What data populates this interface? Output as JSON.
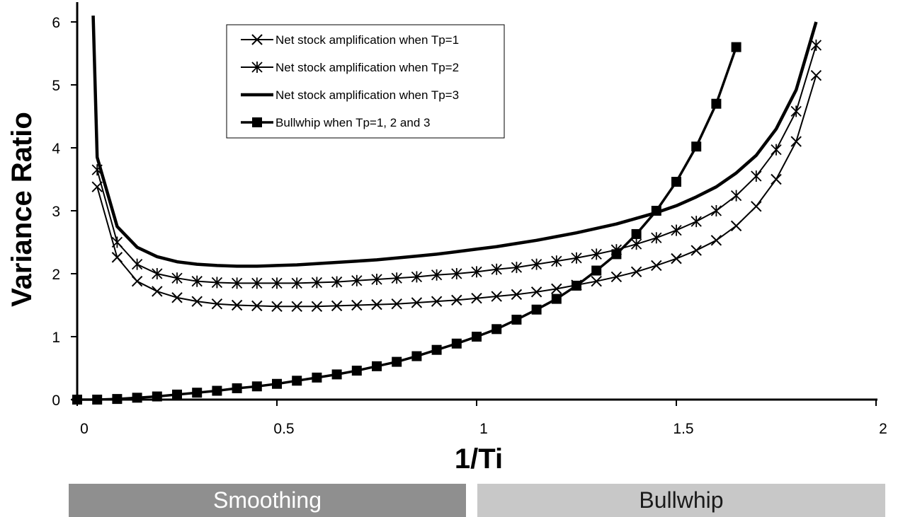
{
  "chart_data": {
    "type": "line",
    "xlabel": "1/Ti",
    "ylabel": "Variance Ratio",
    "xlim": [
      0,
      2
    ],
    "ylim": [
      0,
      6
    ],
    "x_ticks": [
      "0",
      "0.5",
      "1",
      "1.5",
      "2"
    ],
    "y_ticks": [
      "0",
      "1",
      "2",
      "3",
      "4",
      "5",
      "6"
    ],
    "legend_position": "top-center",
    "legend": [
      "Net stock amplification when Tp=1",
      "Net stock amplification when Tp=2",
      "Net stock amplification when Tp=3",
      "Bullwhip when Tp=1, 2 and 3"
    ],
    "series": [
      {
        "name": "Net stock amplification when Tp=1",
        "marker": "x",
        "x": [
          0.05,
          0.1,
          0.15,
          0.2,
          0.25,
          0.3,
          0.35,
          0.4,
          0.45,
          0.5,
          0.55,
          0.6,
          0.65,
          0.7,
          0.75,
          0.8,
          0.85,
          0.9,
          0.95,
          1.0,
          1.05,
          1.1,
          1.15,
          1.2,
          1.25,
          1.3,
          1.35,
          1.4,
          1.45,
          1.5,
          1.55,
          1.6,
          1.65,
          1.7,
          1.75,
          1.8,
          1.85
        ],
        "values": [
          3.38,
          2.26,
          1.88,
          1.72,
          1.62,
          1.56,
          1.52,
          1.5,
          1.49,
          1.48,
          1.48,
          1.48,
          1.49,
          1.5,
          1.51,
          1.52,
          1.54,
          1.56,
          1.58,
          1.61,
          1.64,
          1.67,
          1.71,
          1.76,
          1.82,
          1.88,
          1.95,
          2.03,
          2.13,
          2.24,
          2.37,
          2.53,
          2.76,
          3.07,
          3.5,
          4.1,
          5.15
        ]
      },
      {
        "name": "Net stock amplification when Tp=2",
        "marker": "star",
        "x": [
          0.05,
          0.1,
          0.15,
          0.2,
          0.25,
          0.3,
          0.35,
          0.4,
          0.45,
          0.5,
          0.55,
          0.6,
          0.65,
          0.7,
          0.75,
          0.8,
          0.85,
          0.9,
          0.95,
          1.0,
          1.05,
          1.1,
          1.15,
          1.2,
          1.25,
          1.3,
          1.35,
          1.4,
          1.45,
          1.5,
          1.55,
          1.6,
          1.65,
          1.7,
          1.75,
          1.8,
          1.85
        ],
        "values": [
          3.65,
          2.5,
          2.15,
          2.0,
          1.93,
          1.88,
          1.86,
          1.85,
          1.85,
          1.85,
          1.85,
          1.86,
          1.87,
          1.89,
          1.91,
          1.93,
          1.95,
          1.98,
          2.0,
          2.03,
          2.07,
          2.1,
          2.15,
          2.2,
          2.25,
          2.31,
          2.38,
          2.47,
          2.57,
          2.69,
          2.83,
          3.0,
          3.24,
          3.55,
          3.97,
          4.58,
          5.63
        ]
      },
      {
        "name": "Net stock amplification when Tp=3",
        "marker": "none",
        "x": [
          0.04,
          0.05,
          0.1,
          0.15,
          0.2,
          0.25,
          0.3,
          0.35,
          0.4,
          0.45,
          0.5,
          0.55,
          0.6,
          0.65,
          0.7,
          0.75,
          0.8,
          0.85,
          0.9,
          0.95,
          1.0,
          1.05,
          1.1,
          1.15,
          1.2,
          1.25,
          1.3,
          1.35,
          1.4,
          1.45,
          1.5,
          1.55,
          1.6,
          1.65,
          1.7,
          1.75,
          1.8,
          1.85
        ],
        "values": [
          6.1,
          3.85,
          2.75,
          2.42,
          2.27,
          2.19,
          2.15,
          2.13,
          2.12,
          2.12,
          2.13,
          2.14,
          2.16,
          2.18,
          2.2,
          2.22,
          2.25,
          2.28,
          2.31,
          2.35,
          2.39,
          2.43,
          2.48,
          2.53,
          2.59,
          2.65,
          2.72,
          2.79,
          2.88,
          2.97,
          3.08,
          3.22,
          3.38,
          3.6,
          3.88,
          4.3,
          4.92,
          6.0
        ]
      },
      {
        "name": "Bullwhip when Tp=1, 2 and 3",
        "marker": "square",
        "x": [
          0,
          0.05,
          0.1,
          0.15,
          0.2,
          0.25,
          0.3,
          0.35,
          0.4,
          0.45,
          0.5,
          0.55,
          0.6,
          0.65,
          0.7,
          0.75,
          0.8,
          0.85,
          0.9,
          0.95,
          1.0,
          1.05,
          1.1,
          1.15,
          1.2,
          1.25,
          1.3,
          1.35,
          1.4,
          1.45,
          1.5,
          1.55,
          1.6,
          1.65
        ],
        "values": [
          0,
          0.0,
          0.01,
          0.03,
          0.05,
          0.08,
          0.11,
          0.14,
          0.18,
          0.21,
          0.25,
          0.3,
          0.35,
          0.4,
          0.46,
          0.53,
          0.6,
          0.69,
          0.79,
          0.89,
          1.0,
          1.12,
          1.27,
          1.43,
          1.6,
          1.81,
          2.05,
          2.31,
          2.63,
          3.0,
          3.46,
          4.02,
          4.7,
          5.6
        ]
      }
    ]
  },
  "bands": {
    "smoothing": "Smoothing",
    "bullwhip": "Bullwhip"
  }
}
